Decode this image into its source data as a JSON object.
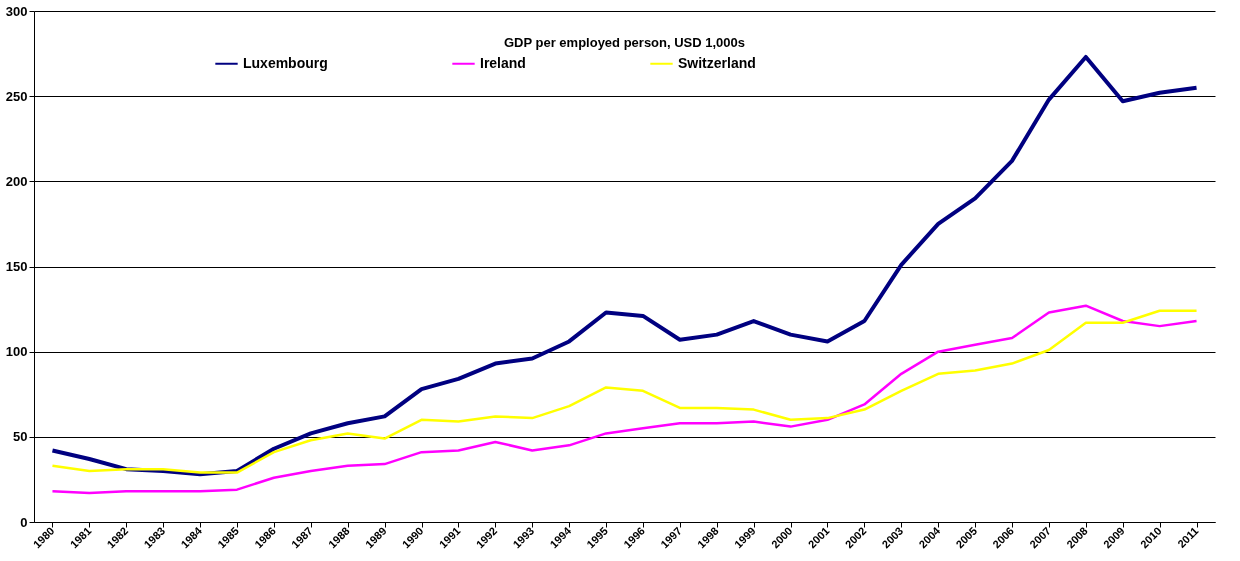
{
  "chart_data": {
    "type": "line",
    "title": "GDP per employed person, USD 1,000s",
    "categories": [
      "1980",
      "1981",
      "1982",
      "1983",
      "1984",
      "1985",
      "1986",
      "1987",
      "1988",
      "1989",
      "1990",
      "1991",
      "1992",
      "1993",
      "1994",
      "1995",
      "1996",
      "1997",
      "1998",
      "1999",
      "2000",
      "2001",
      "2002",
      "2003",
      "2004",
      "2005",
      "2006",
      "2007",
      "2008",
      "2009",
      "2010",
      "2011"
    ],
    "series": [
      {
        "name": "Luxembourg",
        "color": "#000080",
        "values": [
          42,
          37,
          31,
          30,
          28,
          30,
          43,
          52,
          58,
          62,
          78,
          84,
          93,
          96,
          106,
          123,
          121,
          107,
          110,
          118,
          110,
          106,
          118,
          151,
          175,
          190,
          212,
          248,
          273,
          247,
          252,
          255
        ]
      },
      {
        "name": "Ireland",
        "color": "#ff00ff",
        "values": [
          18,
          17,
          18,
          18,
          18,
          19,
          26,
          30,
          33,
          34,
          41,
          42,
          47,
          42,
          45,
          52,
          55,
          58,
          58,
          59,
          56,
          60,
          69,
          87,
          100,
          104,
          108,
          123,
          127,
          118,
          115,
          118
        ]
      },
      {
        "name": "Switzerland",
        "color": "#ffff00",
        "values": [
          33,
          30,
          31,
          31,
          29,
          29,
          41,
          48,
          52,
          49,
          60,
          59,
          62,
          61,
          68,
          79,
          77,
          67,
          67,
          66,
          60,
          61,
          66,
          77,
          87,
          89,
          93,
          101,
          117,
          117,
          124,
          124
        ]
      }
    ],
    "ylim": [
      0,
      300
    ],
    "yticks": [
      0,
      50,
      100,
      150,
      200,
      250,
      300
    ],
    "grid": "y",
    "legend": "top left",
    "marker": "none",
    "line_style": "solid"
  }
}
